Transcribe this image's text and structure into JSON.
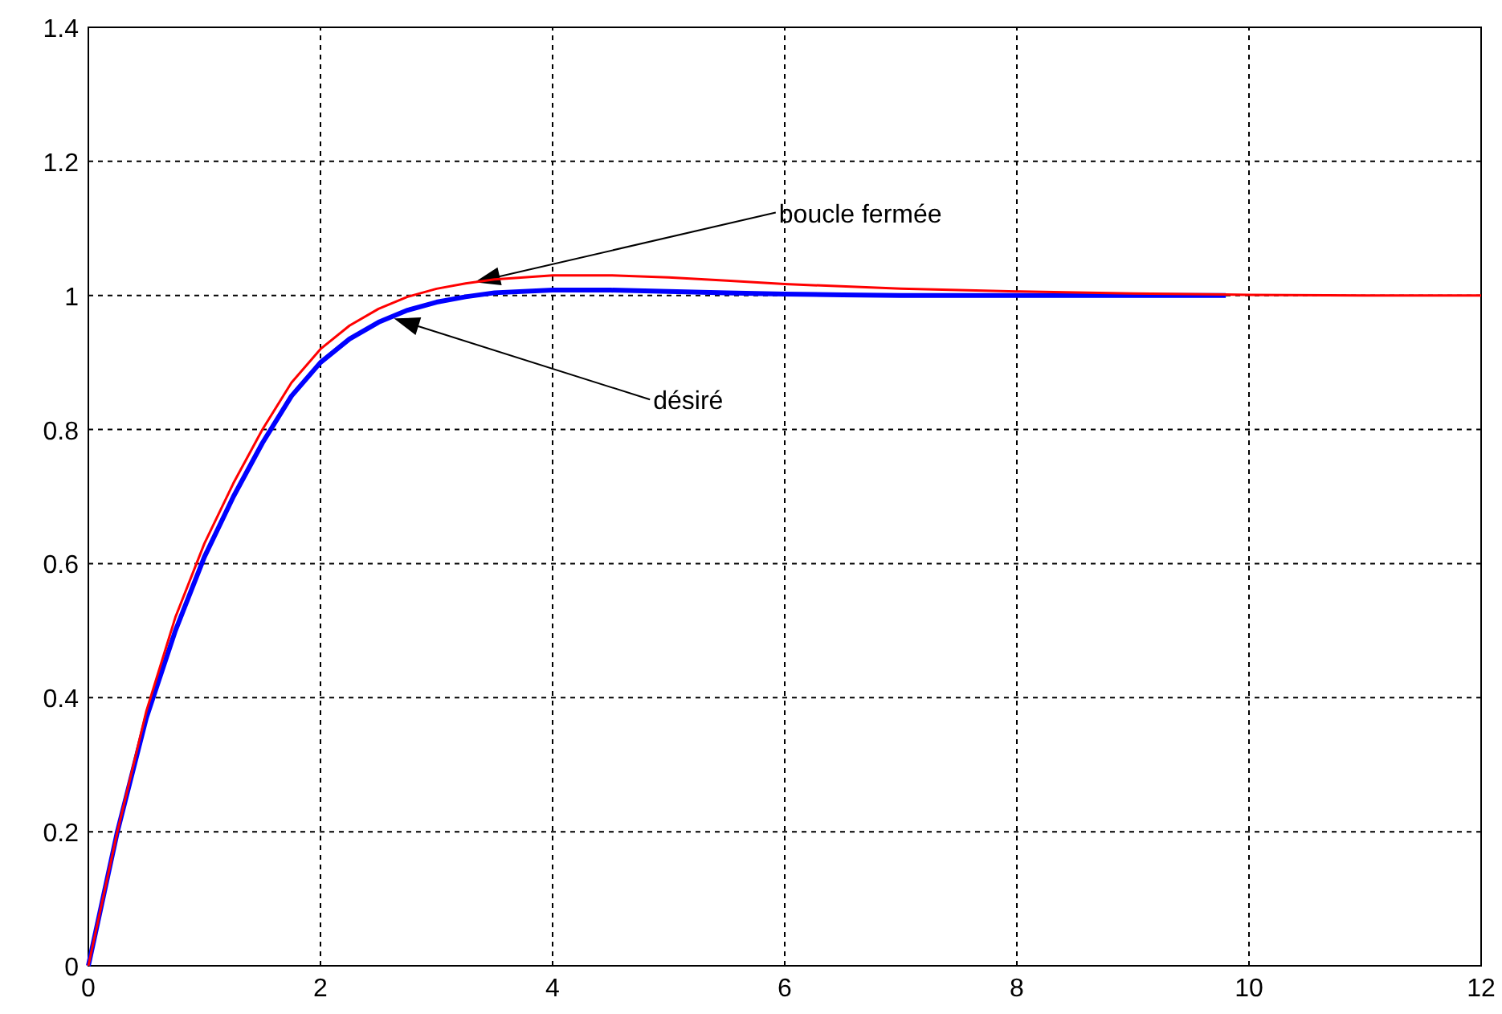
{
  "chart_data": {
    "type": "line",
    "annotations": [
      "boucle fermée",
      "désiré"
    ],
    "series": [
      {
        "color": "#0000ff",
        "x": [
          0,
          0.25,
          0.5,
          0.75,
          1,
          1.25,
          1.5,
          1.75,
          2,
          2.25,
          2.5,
          2.75,
          3,
          3.25,
          3.5,
          4,
          4.5,
          5,
          5.5,
          6,
          6.5,
          7,
          8,
          9,
          9.8
        ],
        "values": [
          0,
          0.2,
          0.37,
          0.5,
          0.61,
          0.7,
          0.78,
          0.85,
          0.9,
          0.935,
          0.96,
          0.978,
          0.99,
          0.998,
          1.004,
          1.008,
          1.008,
          1.006,
          1.004,
          1.002,
          1.001,
          1,
          1,
          1,
          1
        ]
      },
      {
        "color": "#ff0000",
        "x": [
          0,
          0.25,
          0.5,
          0.75,
          1,
          1.25,
          1.5,
          1.75,
          2,
          2.25,
          2.5,
          2.75,
          3,
          3.25,
          3.5,
          4,
          4.5,
          5,
          5.5,
          6,
          7,
          8,
          9,
          10,
          11,
          12
        ],
        "values": [
          0,
          0.2,
          0.38,
          0.52,
          0.63,
          0.72,
          0.8,
          0.87,
          0.92,
          0.955,
          0.98,
          0.998,
          1.01,
          1.018,
          1.024,
          1.03,
          1.03,
          1.027,
          1.022,
          1.017,
          1.01,
          1.006,
          1.003,
          1.001,
          1,
          1
        ]
      }
    ],
    "xlim": [
      0,
      12
    ],
    "xticks": [
      0,
      2,
      4,
      6,
      8,
      10,
      12
    ],
    "ylim": [
      0,
      1.4
    ],
    "yticks": [
      0,
      0.2,
      0.4,
      0.6,
      0.8,
      1,
      1.2,
      1.4
    ],
    "grid": true,
    "line_style": "solid"
  }
}
